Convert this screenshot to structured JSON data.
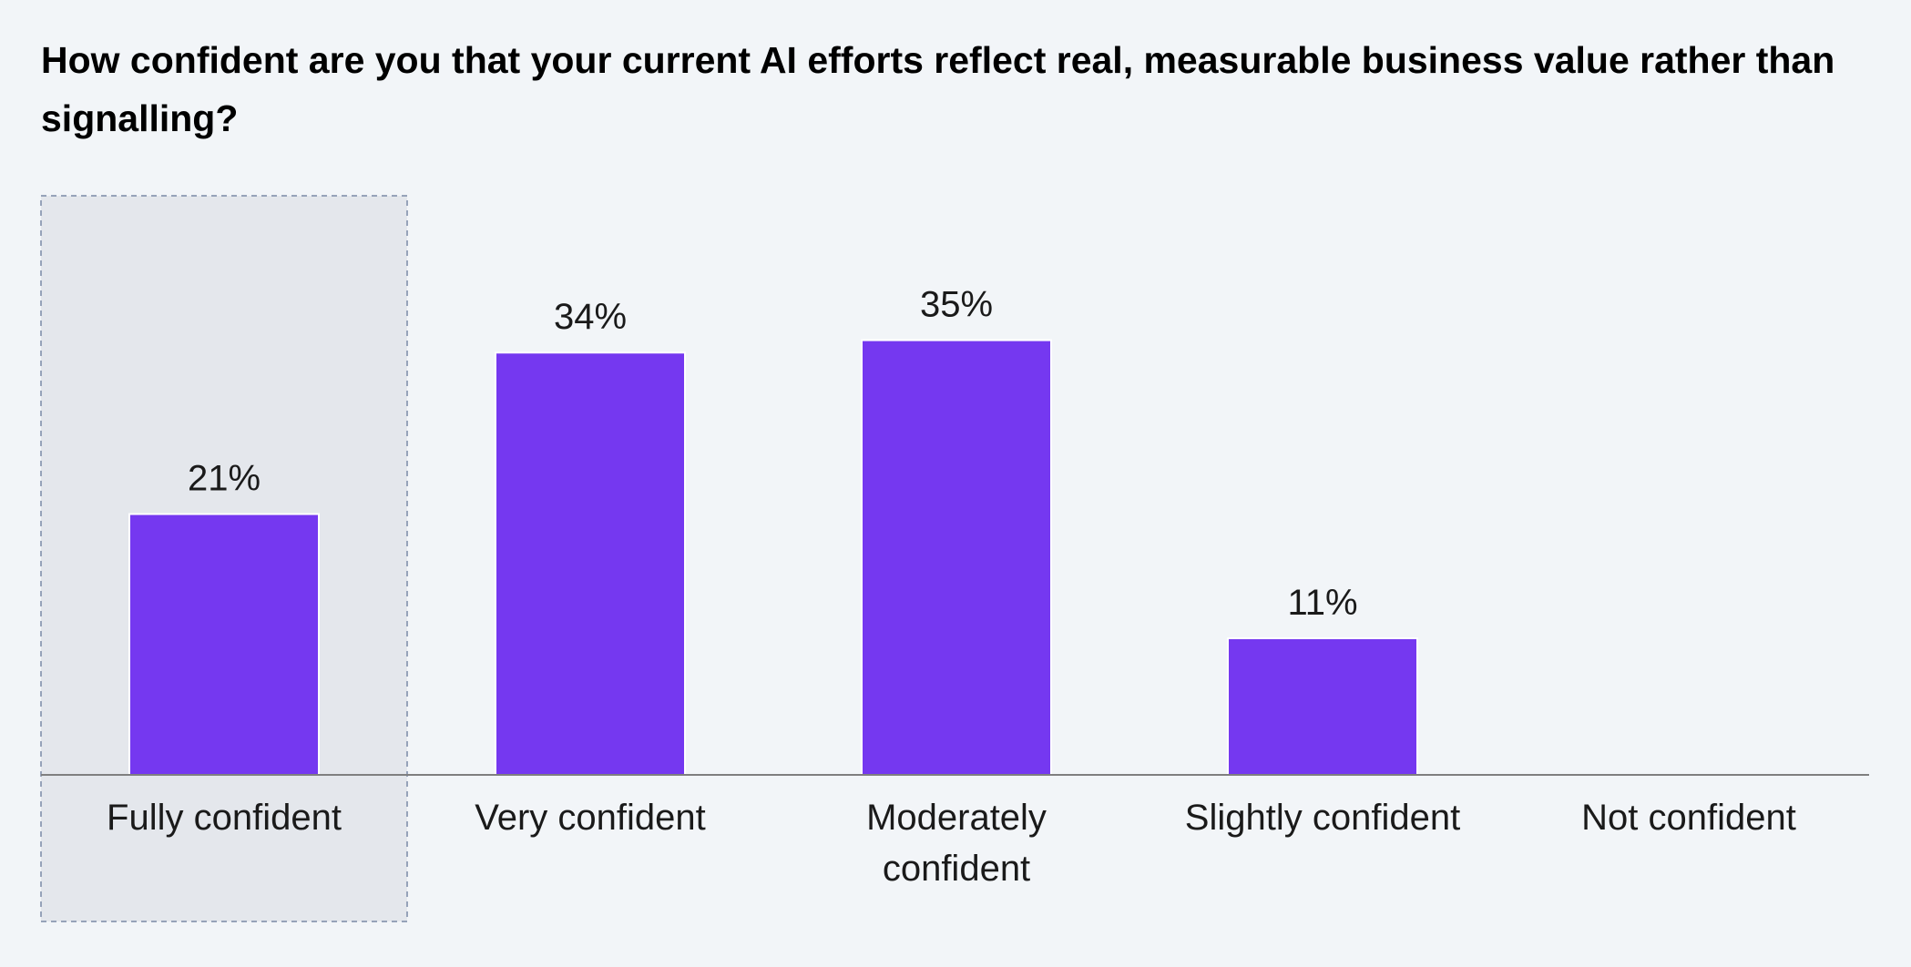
{
  "chart_data": {
    "type": "bar",
    "title": "How confident are you that your current AI efforts reflect real, measurable business value rather than signalling?",
    "categories": [
      [
        "Fully confident"
      ],
      [
        "Very confident"
      ],
      [
        "Moderately",
        "confident"
      ],
      [
        "Slightly confident"
      ],
      [
        "Not confident"
      ]
    ],
    "values": [
      21,
      34,
      35,
      11,
      0
    ],
    "value_labels": [
      "21%",
      "34%",
      "35%",
      "11%",
      ""
    ],
    "unit": "%",
    "highlighted_category_index": 0,
    "ylim": [
      0,
      35
    ],
    "grid": false,
    "legend": "none",
    "colors": {
      "bar": "#7538f0",
      "background": "#f2f5f8",
      "highlight_fill": "#e4e7ec",
      "highlight_border": "#7a8aa6",
      "axis": "#7f7f7f",
      "text": "#1a1a1a",
      "title": "#000000"
    }
  }
}
